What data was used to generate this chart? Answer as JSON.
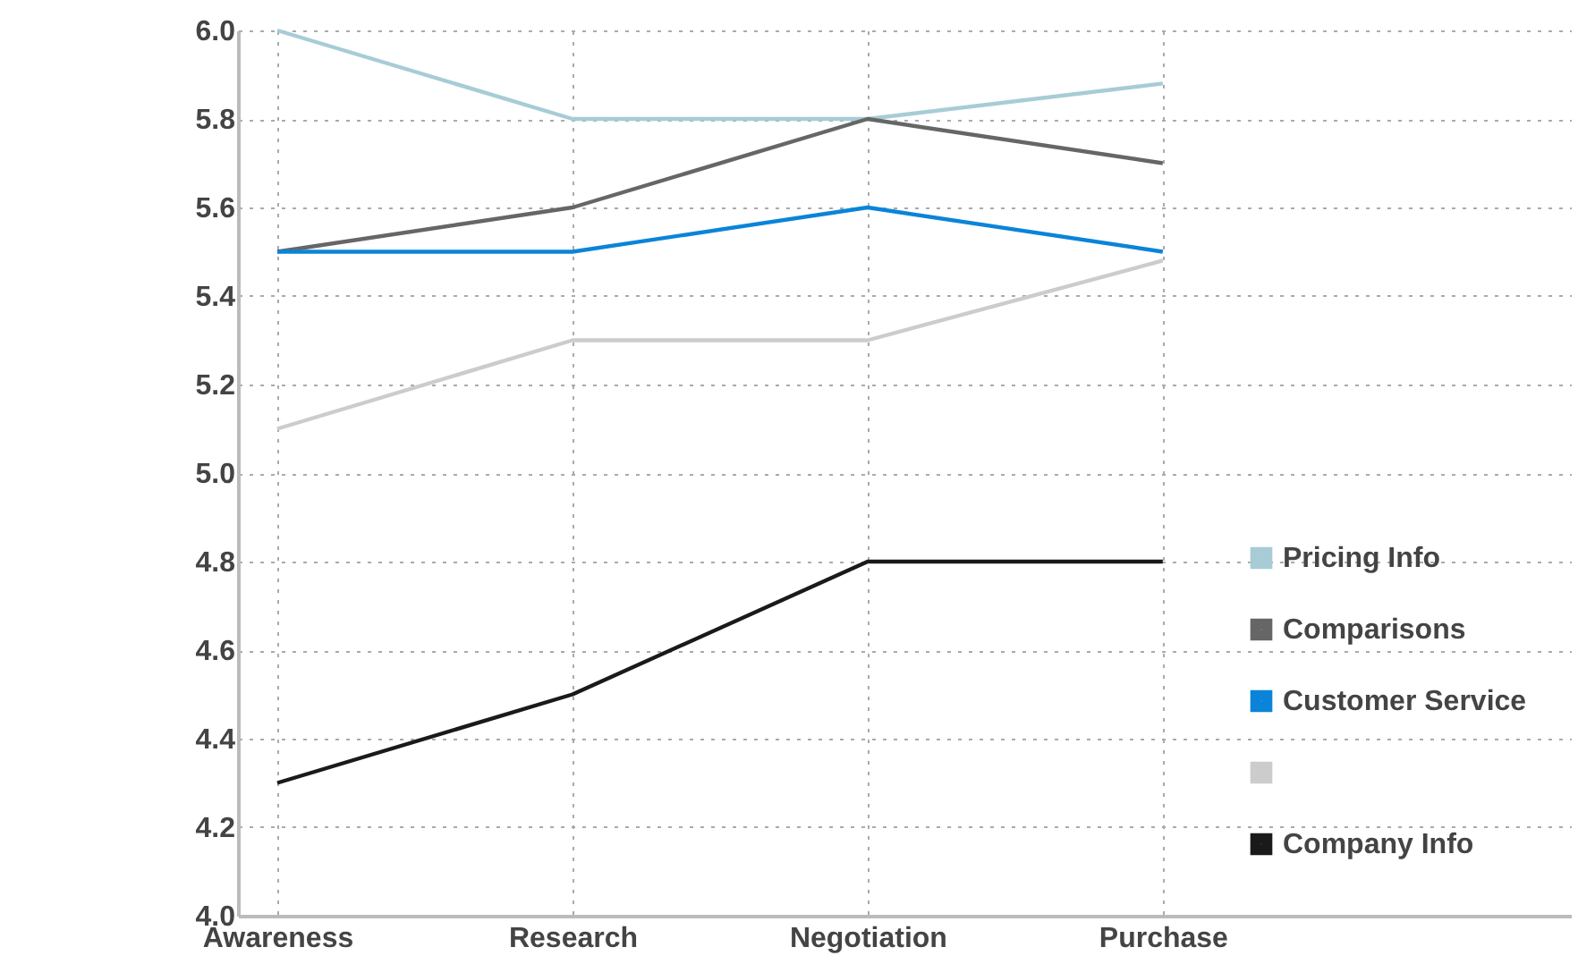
{
  "chart_data": {
    "type": "line",
    "categories": [
      "Awareness",
      "Research",
      "Negotiation",
      "Purchase"
    ],
    "series": [
      {
        "name": "Pricing Info",
        "color": "#a7ccd6",
        "values": [
          6.0,
          5.8,
          5.8,
          5.88
        ]
      },
      {
        "name": "Comparisons",
        "color": "#666666",
        "values": [
          5.5,
          5.6,
          5.8,
          5.7
        ]
      },
      {
        "name": "Customer Service",
        "color": "#0a84d8",
        "values": [
          5.5,
          5.5,
          5.6,
          5.5
        ]
      },
      {
        "name": null,
        "color": "#cccccc",
        "values": [
          5.1,
          5.3,
          5.3,
          5.48
        ]
      },
      {
        "name": "Company Info",
        "color": "#1a1a1a",
        "values": [
          4.3,
          4.5,
          4.8,
          4.8
        ]
      }
    ],
    "ylim": [
      4.0,
      6.0
    ],
    "yticks": [
      {
        "value": 4,
        "label": "4.0"
      },
      4.2,
      4.4,
      4.6,
      4.8,
      {
        "value": 5,
        "label": "5.0"
      },
      5.2,
      5.4,
      5.6,
      5.8,
      {
        "value": 6,
        "label": "6.0"
      }
    ],
    "grid": true,
    "legend": "bottom right",
    "marker": "none",
    "line_style": "solid"
  }
}
